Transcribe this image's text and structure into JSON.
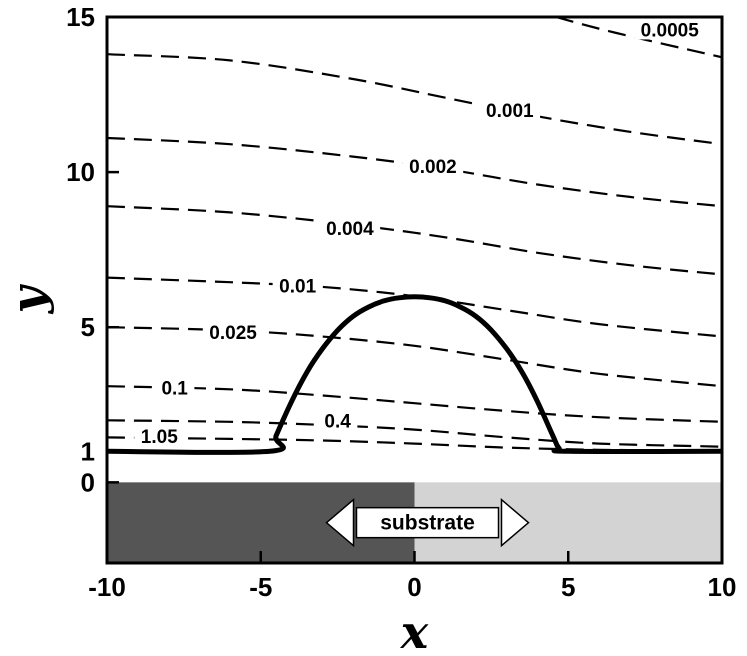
{
  "chart_data": {
    "type": "contour",
    "xlabel": "x",
    "ylabel": "y",
    "xlim": [
      -10,
      10
    ],
    "ylim": [
      -2.6,
      15
    ],
    "xticks": [
      -10,
      -5,
      0,
      5,
      10
    ],
    "yticks": [
      0,
      1,
      5,
      10,
      15
    ],
    "grid": false,
    "colors": {
      "substrate_left": "#555555",
      "substrate_right": "#d3d3d3",
      "lines": "#000000"
    },
    "substrate": {
      "label": "substrate",
      "y_range": [
        -2.6,
        0
      ],
      "split_x": 0
    },
    "droplet_profile": {
      "x": [
        -10,
        -4.7,
        -4.5,
        -4.0,
        -3.5,
        -3.0,
        -2.5,
        -2.0,
        -1.5,
        -1.0,
        -0.5,
        0,
        0.5,
        1.0,
        1.5,
        2.0,
        2.5,
        3.0,
        3.5,
        4.0,
        4.5,
        4.7,
        5.0,
        10
      ],
      "y": [
        1,
        1,
        1.5,
        2.6,
        3.55,
        4.3,
        4.9,
        5.35,
        5.65,
        5.85,
        5.95,
        5.98,
        5.95,
        5.85,
        5.65,
        5.35,
        4.9,
        4.3,
        3.55,
        2.6,
        1.5,
        1.1,
        1,
        1
      ]
    },
    "contours": [
      {
        "level": "0.0005",
        "label": "0.0005",
        "label_at": [
          8.3,
          14.6
        ],
        "x": [
          4.6,
          6.5,
          10
        ],
        "y": [
          15.0,
          14.5,
          13.7
        ]
      },
      {
        "level": "0.001",
        "label": "0.001",
        "label_at": [
          3.1,
          12.0
        ],
        "x": [
          -10,
          -6,
          -2,
          1,
          4,
          7,
          10
        ],
        "y": [
          13.8,
          13.6,
          13.0,
          12.4,
          11.8,
          11.3,
          10.9
        ]
      },
      {
        "level": "0.002",
        "label": "0.002",
        "label_at": [
          0.6,
          10.2
        ],
        "x": [
          -10,
          -6,
          -2,
          1,
          4,
          7,
          10
        ],
        "y": [
          11.1,
          10.9,
          10.5,
          10.1,
          9.6,
          9.2,
          8.9
        ]
      },
      {
        "level": "0.004",
        "label": "0.004",
        "label_at": [
          -2.1,
          8.2
        ],
        "x": [
          -10,
          -6,
          -2,
          1,
          4,
          7,
          10
        ],
        "y": [
          8.9,
          8.7,
          8.3,
          7.9,
          7.4,
          7.0,
          6.7
        ]
      },
      {
        "level": "0.01",
        "label": "0.01",
        "label_at": [
          -3.8,
          6.35
        ],
        "x": [
          -10,
          -6,
          -3,
          0,
          3,
          6,
          10
        ],
        "y": [
          6.6,
          6.45,
          6.3,
          6.0,
          5.55,
          5.1,
          4.7
        ]
      },
      {
        "level": "0.025",
        "label": "0.025",
        "label_at": [
          -5.9,
          4.85
        ],
        "x": [
          -10,
          -6,
          -3,
          0,
          3,
          6,
          10
        ],
        "y": [
          5.0,
          4.9,
          4.7,
          4.4,
          3.95,
          3.5,
          3.1
        ]
      },
      {
        "level": "0.1",
        "label": "0.1",
        "label_at": [
          -7.8,
          3.05
        ],
        "x": [
          -10,
          -6,
          -3,
          0,
          3,
          6,
          10
        ],
        "y": [
          3.1,
          3.0,
          2.8,
          2.55,
          2.3,
          2.1,
          1.95
        ]
      },
      {
        "level": "0.4",
        "label": "0.4",
        "label_at": [
          -2.5,
          2.0
        ],
        "x": [
          -10,
          -6,
          -3,
          0,
          3,
          6,
          10
        ],
        "y": [
          2.0,
          1.95,
          1.85,
          1.7,
          1.45,
          1.25,
          1.15
        ]
      },
      {
        "level": "1.05",
        "label": "1.05",
        "label_at": [
          -8.3,
          1.5
        ],
        "x": [
          -10,
          -6,
          -3,
          0,
          3,
          6,
          10
        ],
        "y": [
          1.45,
          1.4,
          1.35,
          1.25,
          1.12,
          1.05,
          1.02
        ]
      }
    ]
  }
}
